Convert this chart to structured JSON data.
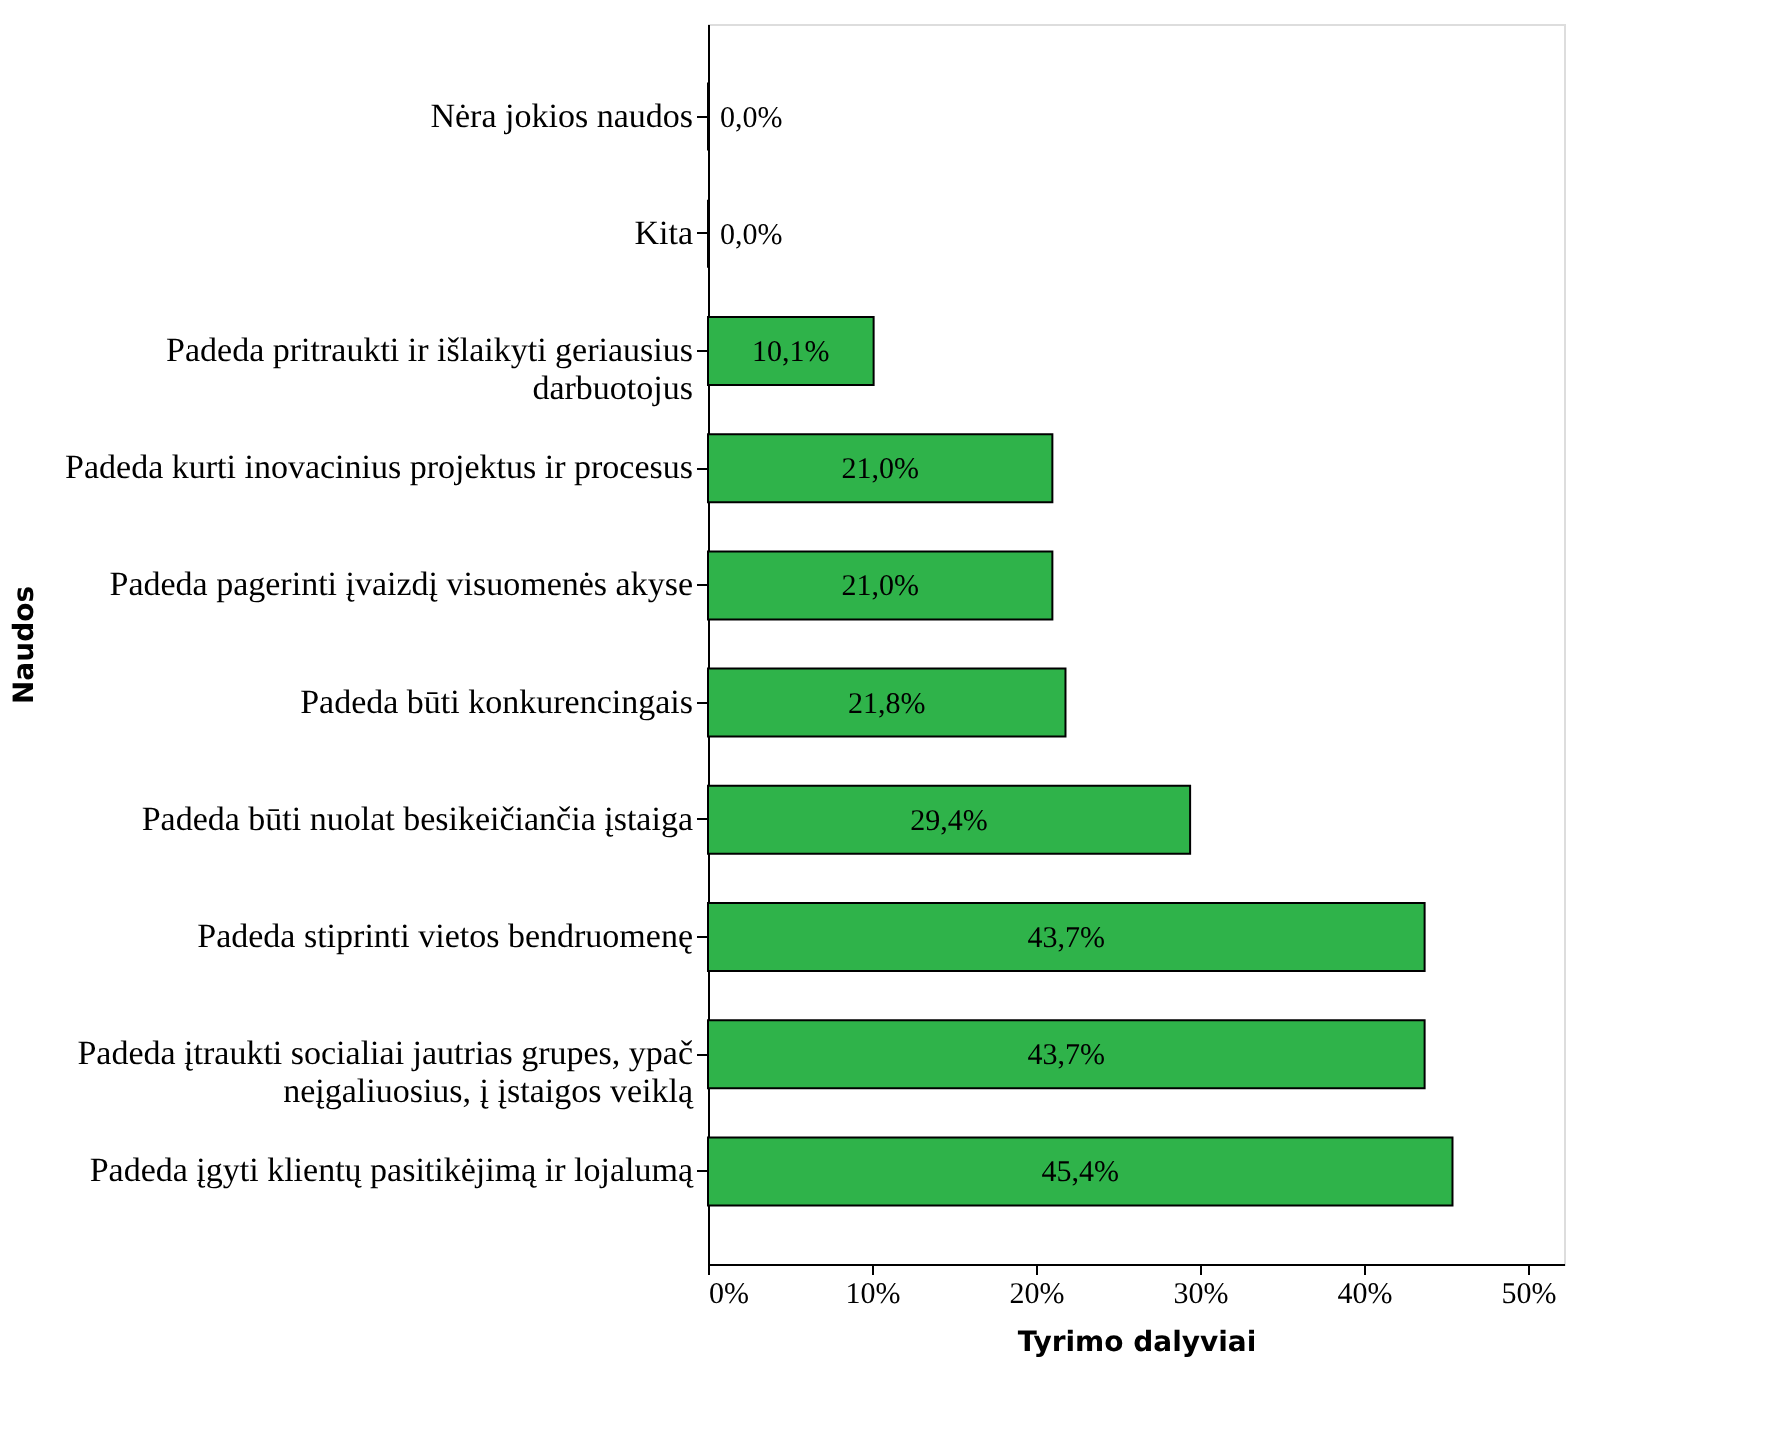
{
  "chart_data": {
    "type": "bar",
    "orientation": "horizontal",
    "xlabel": "Tyrimo dalyviai",
    "ylabel": "Naudos",
    "categories": [
      "Nėra jokios naudos",
      "Kita",
      "Padeda pritraukti ir išlaikyti geriausius darbuotojus",
      "Padeda kurti inovacinius projektus ir procesus",
      "Padeda pagerinti įvaizdį visuomenės akyse",
      "Padeda būti konkurencingais",
      "Padeda būti nuolat besikeičiančia įstaiga",
      "Padeda stiprinti vietos bendruomenę",
      "Padeda įtraukti socialiai jautrias grupes, ypač neįgaliuosius, į įstaigos veiklą",
      "Padeda įgyti klientų pasitikėjimą ir lojalumą"
    ],
    "values": [
      0,
      0,
      10.1,
      21.0,
      21.0,
      21.8,
      29.4,
      43.7,
      43.7,
      45.4
    ],
    "value_labels": [
      "0,0%",
      "0,0%",
      "10,1%",
      "21,0%",
      "21,0%",
      "21,8%",
      "29,4%",
      "43,7%",
      "43,7%",
      "45,4%"
    ],
    "color": "#2fb34a",
    "xlim": [
      0,
      52.2
    ],
    "xticks": [
      {
        "value": 0,
        "label": "0%"
      },
      {
        "value": 10,
        "label": "10%"
      },
      {
        "value": 20,
        "label": "20%"
      },
      {
        "value": 30,
        "label": "30%"
      },
      {
        "value": 40,
        "label": "40%"
      },
      {
        "value": 50,
        "label": "50%"
      }
    ],
    "grid": false
  }
}
